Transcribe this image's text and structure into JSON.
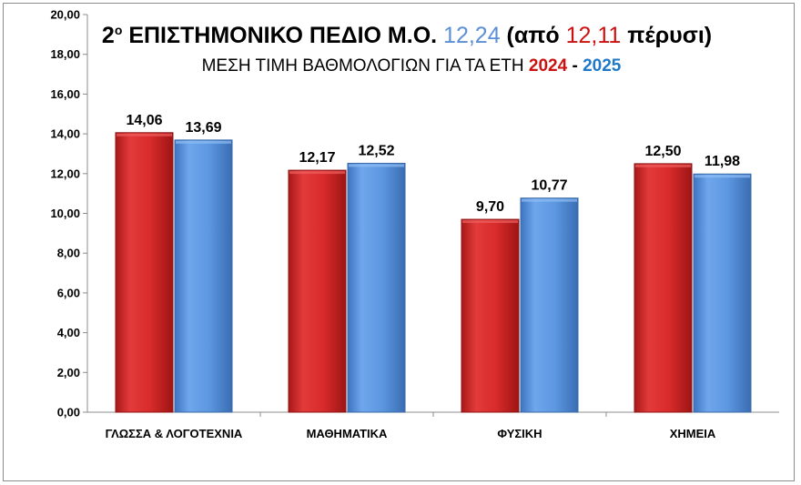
{
  "chart_data": {
    "type": "bar",
    "title": {
      "prefix": "2",
      "sup": "ο",
      "main": " ΕΠΙΣΤΗΜΟΝΙΚΟ ΠΕΔΙΟ Μ.Ο. ",
      "value_2025": "12,24",
      "open_text": " (από ",
      "value_2024": "12,11",
      "close_text": " πέρυσι)"
    },
    "subtitle": {
      "text": "ΜΕΣΗ ΤΙΜΗ ΒΑΘΜΟΛΟΓΙΩΝ ΓΙΑ ΤΑ ΕΤΗ ",
      "year_a": "2024",
      "dash": " - ",
      "year_b": "2025"
    },
    "categories": [
      "ΓΛΩΣΣΑ & ΛΟΓΟΤΕΧΝΙΑ",
      "ΜΑΘΗΜΑΤΙΚΑ",
      "ΦΥΣΙΚΗ",
      "ΧΗΜΕΙΑ"
    ],
    "series": [
      {
        "name": "2024",
        "color": "#d92b2b",
        "values": [
          14.06,
          12.17,
          9.7,
          12.5
        ],
        "labels": [
          "14,06",
          "12,17",
          "9,70",
          "12,50"
        ]
      },
      {
        "name": "2025",
        "color": "#5c97e0",
        "values": [
          13.69,
          12.52,
          10.77,
          11.98
        ],
        "labels": [
          "13,69",
          "12,52",
          "10,77",
          "11,98"
        ]
      }
    ],
    "ylim": [
      0,
      20
    ],
    "y_ticks": [
      "0,00",
      "2,00",
      "4,00",
      "6,00",
      "8,00",
      "10,00",
      "12,00",
      "14,00",
      "16,00",
      "18,00",
      "20,00"
    ],
    "grid": false,
    "legend": "none",
    "colors": {
      "red": "#d92b2b",
      "blue": "#5c97e0",
      "title_blue": "#5b8fd6",
      "title_red": "#cc1111"
    }
  }
}
